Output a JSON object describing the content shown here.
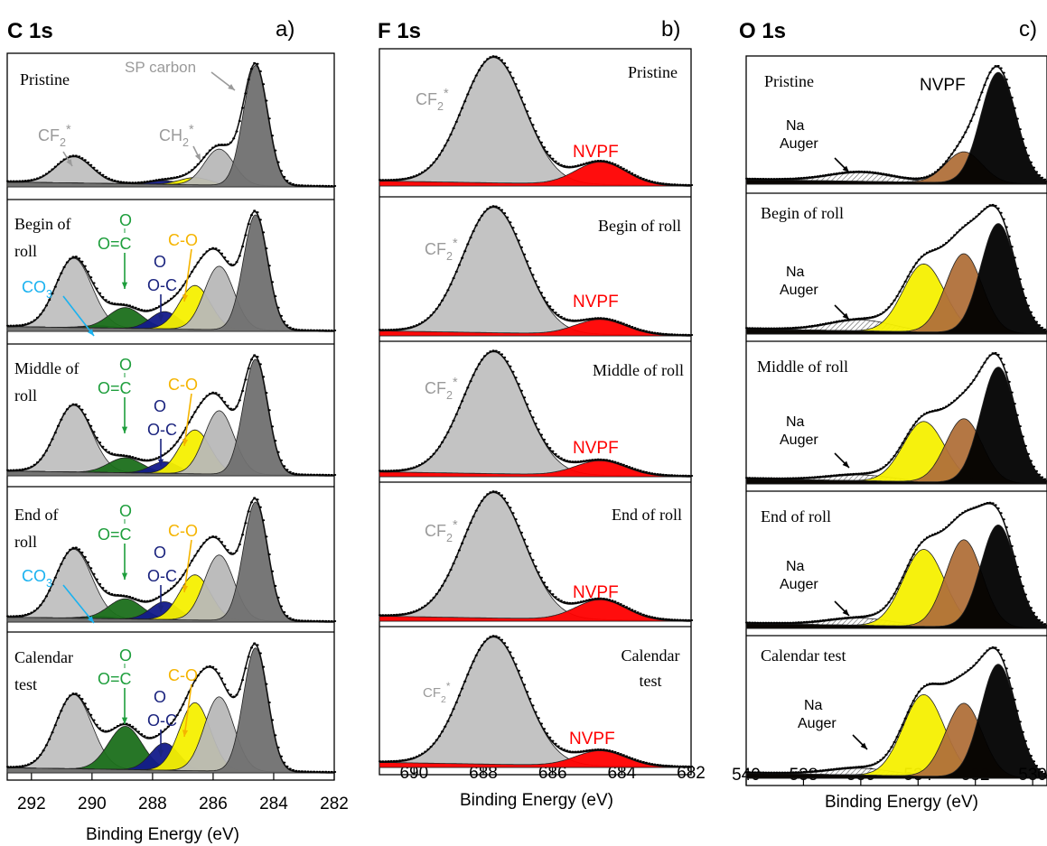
{
  "colors": {
    "frame": "#000000",
    "envelope": "#111111",
    "sp_carbon": "#707070",
    "cf2": "#c0c0c0",
    "ch2": "#b8b8b8",
    "co3": "#17365d",
    "oco_ester": "#1b6f1b",
    "oc_ether": "#121a8a",
    "co": "#f5f000",
    "nvpf_f": "#ff0000",
    "nvpf_o": "#000000",
    "o_mid": "#b0703a",
    "o_high": "#f5f000",
    "na_auger_hatch": "#555555",
    "label_green": "#1e9e3c",
    "label_navy": "#1a237e",
    "label_orange": "#f5b400",
    "label_cyan": "#1ab2f0",
    "label_gray": "#9a9a9a",
    "label_red": "#ff0000"
  },
  "chart_data": [
    {
      "panel": "a)",
      "title": "C 1s",
      "type": "area",
      "xlabel": "Binding Energy (eV)",
      "xlim": [
        292.8,
        282
      ],
      "xticks": [
        292,
        290,
        288,
        286,
        284,
        282
      ],
      "rows": [
        "Pristine",
        "Begin of roll",
        "Middle of roll",
        "End of roll",
        "Calendar test"
      ],
      "annotations": {
        "sp_carbon": "SP carbon",
        "cf2": "CF",
        "ch2": "CH",
        "sub2": "2",
        "star": "*",
        "co3": "CO",
        "sub3": "3",
        "o_top": "O",
        "oc_ester": "O=C",
        "oc_ether": "O-C",
        "co": "C-O"
      },
      "components": [
        {
          "name": "CF2*",
          "center": 290.6,
          "fwhm": 1.4
        },
        {
          "name": "CO3",
          "center": 289.8,
          "fwhm": 1.2
        },
        {
          "name": "O=C-O",
          "center": 288.9,
          "fwhm": 1.3
        },
        {
          "name": "O-C-O",
          "center": 287.6,
          "fwhm": 1.1
        },
        {
          "name": "C-O",
          "center": 286.6,
          "fwhm": 1.2
        },
        {
          "name": "CH2*",
          "center": 285.8,
          "fwhm": 1.15
        },
        {
          "name": "SP carbon",
          "center": 284.6,
          "fwhm": 0.95
        }
      ],
      "series": [
        {
          "row": "Pristine",
          "amplitudes": [
            0.22,
            0,
            0,
            0.03,
            0.06,
            0.3,
            1.0
          ]
        },
        {
          "row": "Begin of roll",
          "amplitudes": [
            0.6,
            0.02,
            0.18,
            0.15,
            0.38,
            0.55,
            1.0
          ]
        },
        {
          "row": "Middle of roll",
          "amplitudes": [
            0.58,
            0,
            0.13,
            0.1,
            0.38,
            0.55,
            1.0
          ]
        },
        {
          "row": "End of roll",
          "amplitudes": [
            0.58,
            0.02,
            0.17,
            0.15,
            0.38,
            0.55,
            1.0
          ]
        },
        {
          "row": "Calendar test",
          "amplitudes": [
            0.6,
            0,
            0.35,
            0.22,
            0.55,
            0.6,
            1.0
          ]
        }
      ]
    },
    {
      "panel": "b)",
      "title": "F 1s",
      "type": "area",
      "xlabel": "Binding Energy (eV)",
      "xlim": [
        691,
        682
      ],
      "xticks": [
        690,
        688,
        686,
        684,
        682
      ],
      "rows": [
        "Pristine",
        "Begin of roll",
        "Middle of roll",
        "End of roll",
        "Calendar test"
      ],
      "annotations": {
        "cf2": "CF",
        "sub2": "2",
        "star": "*",
        "nvpf": "NVPF"
      },
      "components": [
        {
          "name": "CF2*",
          "center": 687.7,
          "fwhm": 2.1
        },
        {
          "name": "NVPF",
          "center": 684.6,
          "fwhm": 1.7
        }
      ],
      "series": [
        {
          "row": "Pristine",
          "amplitudes": [
            1.0,
            0.18
          ]
        },
        {
          "row": "Begin of roll",
          "amplitudes": [
            1.0,
            0.12
          ]
        },
        {
          "row": "Middle of roll",
          "amplitudes": [
            1.0,
            0.12
          ]
        },
        {
          "row": "End of roll",
          "amplitudes": [
            1.0,
            0.16
          ]
        },
        {
          "row": "Calendar test",
          "amplitudes": [
            1.0,
            0.12
          ]
        }
      ]
    },
    {
      "panel": "c)",
      "title": "O 1s",
      "type": "area",
      "xlabel": "Binding Energy (eV)",
      "xlim": [
        540,
        529.5
      ],
      "xticks": [
        540,
        538,
        536,
        534,
        532,
        530
      ],
      "rows": [
        "Pristine",
        "Begin of roll",
        "Middle of roll",
        "End of roll",
        "Calendar test"
      ],
      "annotations": {
        "nvpf": "NVPF",
        "na": "Na",
        "auger": "Auger"
      },
      "components": [
        {
          "name": "Na Auger",
          "center": 536.0,
          "fwhm": 2.6
        },
        {
          "name": "C=O/C-O (yellow)",
          "center": 533.8,
          "fwhm": 1.7
        },
        {
          "name": "O (brown)",
          "center": 532.4,
          "fwhm": 1.5
        },
        {
          "name": "NVPF",
          "center": 531.2,
          "fwhm": 1.45
        }
      ],
      "series": [
        {
          "row": "Pristine",
          "amplitudes": [
            0.08,
            0,
            0.28,
            1.0
          ]
        },
        {
          "row": "Begin of roll",
          "amplitudes": [
            0.1,
            0.62,
            0.72,
            1.0
          ]
        },
        {
          "row": "Middle of roll",
          "amplitudes": [
            0.05,
            0.52,
            0.55,
            1.0
          ]
        },
        {
          "row": "End of roll",
          "amplitudes": [
            0.07,
            0.75,
            0.85,
            1.0
          ]
        },
        {
          "row": "Calendar test",
          "amplitudes": [
            0.06,
            0.72,
            0.65,
            1.0
          ]
        }
      ]
    }
  ]
}
